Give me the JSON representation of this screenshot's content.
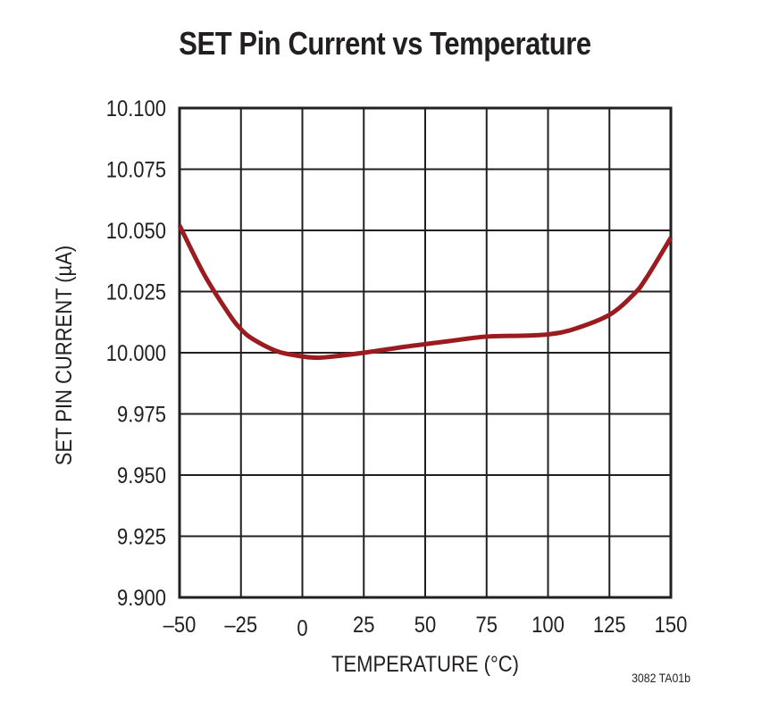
{
  "chart_data": {
    "type": "line",
    "title": "SET Pin Current vs Temperature",
    "xlabel": "TEMPERATURE (°C)",
    "ylabel": "SET PIN CURRENT (µA)",
    "xlim": [
      -50,
      150
    ],
    "ylim": [
      9.9,
      10.1
    ],
    "grid": true,
    "x_ticks": [
      "–50",
      "–25",
      "0",
      "25",
      "50",
      "75",
      "100",
      "125",
      "150"
    ],
    "y_ticks": [
      "10.100",
      "10.075",
      "10.050",
      "10.025",
      "10.000",
      "9.975",
      "9.950",
      "9.925",
      "9.900"
    ],
    "series": [
      {
        "name": "SET Pin Current",
        "color": "#9b1c20",
        "x": [
          -50,
          -40,
          -30,
          -25,
          -20,
          -10,
          0,
          5,
          10,
          25,
          40,
          50,
          60,
          75,
          90,
          100,
          110,
          125,
          135,
          140,
          150
        ],
        "y": [
          10.052,
          10.032,
          10.016,
          10.0096,
          10.0055,
          10.0005,
          9.9985,
          9.998,
          9.9982,
          10.0,
          10.0022,
          10.0035,
          10.0048,
          10.0066,
          10.007,
          10.0075,
          10.0095,
          10.0155,
          10.024,
          10.0305,
          10.047
        ]
      }
    ],
    "annotation": "3082 TA01b"
  }
}
